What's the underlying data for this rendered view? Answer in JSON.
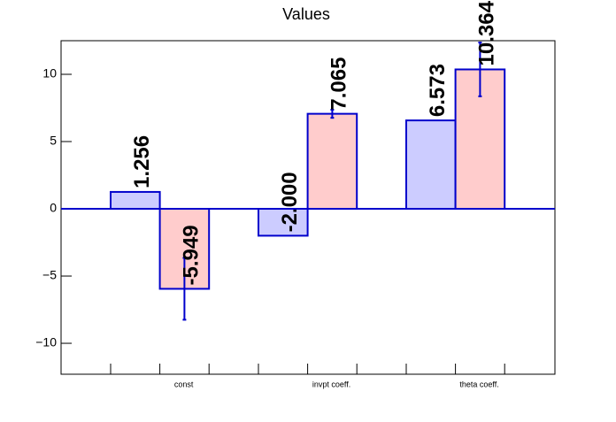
{
  "chart_data": {
    "type": "bar",
    "title": "Values",
    "categories": [
      "const",
      "invpt coeff.",
      "theta coeff."
    ],
    "series": [
      {
        "color": "#ccccff",
        "values": [
          1.256,
          -2.0,
          6.573
        ],
        "value_labels": [
          "1.256",
          "-2.000",
          "6.573"
        ]
      },
      {
        "color": "#ffcccc",
        "values": [
          -5.949,
          7.065,
          10.364
        ],
        "errors": [
          2.3,
          0.3,
          2.0
        ]
      }
    ],
    "ylim": [
      -12.3,
      12.5
    ],
    "yticks": [
      {
        "value": -10,
        "label": "−10"
      },
      {
        "value": -5,
        "label": "−5"
      },
      0,
      5,
      10
    ]
  }
}
